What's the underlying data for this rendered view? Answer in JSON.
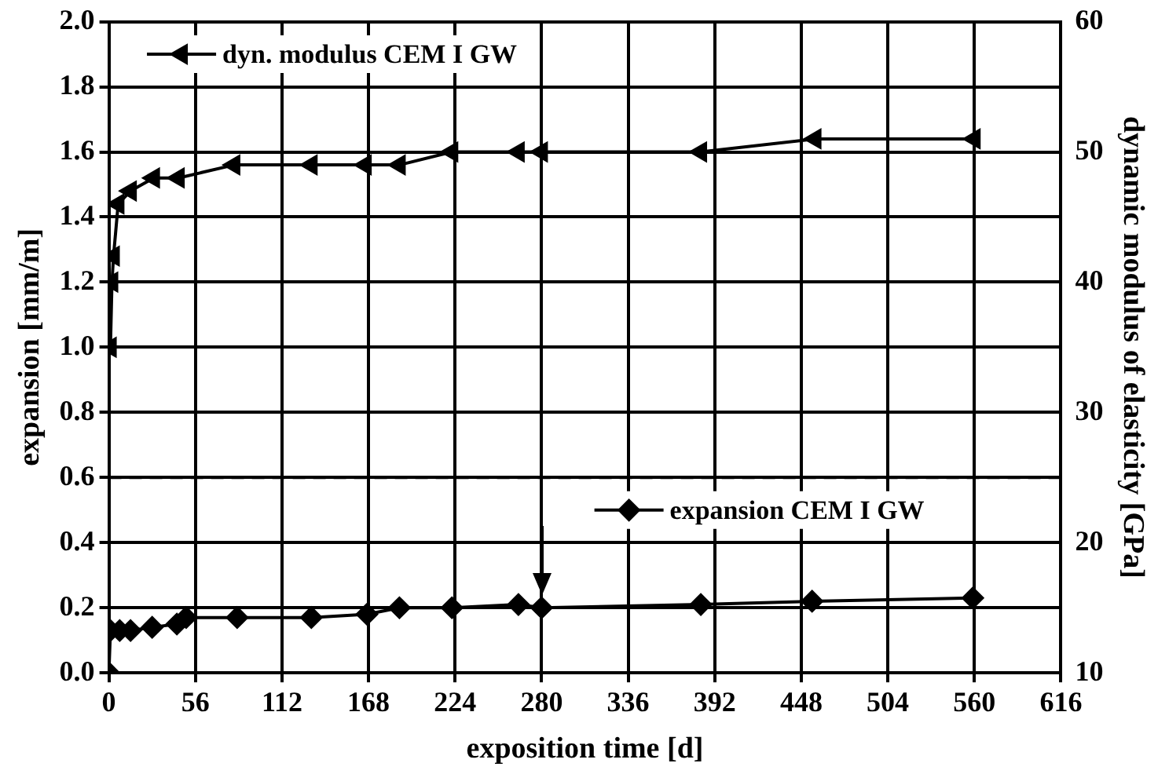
{
  "chart_data": {
    "type": "line",
    "xlabel": "exposition time [d]",
    "ylabel": "expansion [mm/m]",
    "y2label": "dynamic modulus of elasticity [GPa]",
    "xlim": [
      0,
      616
    ],
    "xticks": [
      0,
      56,
      112,
      168,
      224,
      280,
      336,
      392,
      448,
      504,
      560,
      616
    ],
    "ylim": [
      0,
      2
    ],
    "yticks": [
      {
        "value": 0,
        "label": "0.0"
      },
      0.2,
      0.4,
      0.6,
      0.8,
      {
        "value": 1,
        "label": "1.0"
      },
      1.2,
      1.4,
      1.6,
      1.8,
      {
        "value": 2,
        "label": "2.0"
      }
    ],
    "y2lim": [
      10,
      60
    ],
    "y2ticks": [
      10,
      20,
      30,
      40,
      50,
      60
    ],
    "grid": true,
    "legend": "top left",
    "line_style": "solid",
    "ref_lines": [
      {
        "axis": "y",
        "value": 0.6,
        "line_style": "dashed",
        "color": "#000000"
      }
    ],
    "series": [
      {
        "name": "dyn. modulus CEM I GW",
        "color": "#000000",
        "axis": "y2",
        "marker": "triangle",
        "x": [
          1,
          2,
          3,
          6,
          14,
          29,
          45,
          81,
          131,
          166,
          188,
          222,
          265,
          280,
          383,
          457,
          560
        ],
        "values": [
          35,
          40,
          42,
          46,
          47,
          48,
          48,
          49,
          49,
          49,
          49,
          50,
          50,
          50,
          50,
          51,
          51
        ]
      },
      {
        "name": "expansion CEM I GW",
        "color": "#000000",
        "marker": "diamond",
        "x": [
          0,
          1,
          7,
          14,
          28,
          44,
          50,
          83,
          131,
          167,
          188,
          222,
          265,
          280,
          383,
          455,
          559
        ],
        "values": [
          0,
          0.13,
          0.13,
          0.13,
          0.14,
          0.15,
          0.17,
          0.17,
          0.17,
          0.18,
          0.2,
          0.2,
          0.21,
          0.2,
          0.21,
          0.22,
          0.23
        ]
      }
    ]
  }
}
